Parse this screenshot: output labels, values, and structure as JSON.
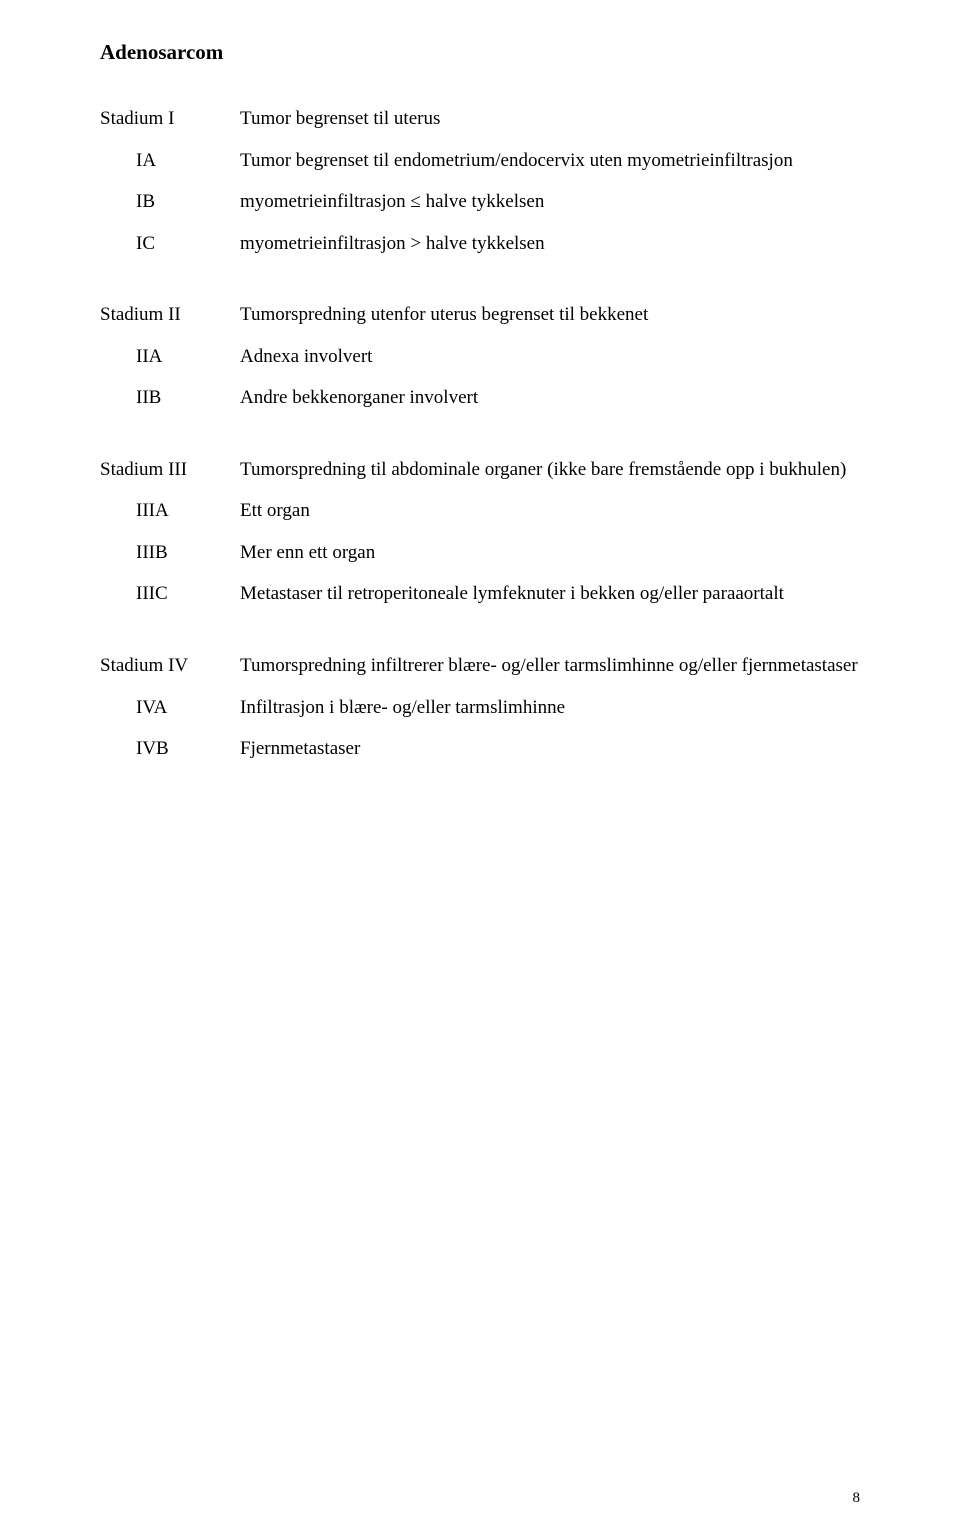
{
  "title": "Adenosarcom",
  "page_number": "8",
  "colors": {
    "text": "#000000",
    "background": "#ffffff"
  },
  "typography": {
    "family": "Times New Roman",
    "heading_size_pt": 16,
    "body_size_pt": 14
  },
  "groups": [
    {
      "rows": [
        {
          "label": "Stadium I",
          "sub": false,
          "text": "Tumor begrenset til uterus"
        },
        {
          "label": "IA",
          "sub": true,
          "text": "Tumor begrenset til endometrium/endocervix uten myometrieinfiltrasjon"
        },
        {
          "label": "IB",
          "sub": true,
          "text": "myometrieinfiltrasjon ≤ halve tykkelsen"
        },
        {
          "label": "IC",
          "sub": true,
          "text": "myometrieinfiltrasjon > halve tykkelsen"
        }
      ]
    },
    {
      "rows": [
        {
          "label": "Stadium II",
          "sub": false,
          "text": "Tumorspredning utenfor uterus begrenset til bekkenet"
        },
        {
          "label": "IIA",
          "sub": true,
          "text": "Adnexa involvert"
        },
        {
          "label": "IIB",
          "sub": true,
          "text": "Andre bekkenorganer involvert"
        }
      ]
    },
    {
      "rows": [
        {
          "label": "Stadium III",
          "sub": false,
          "text": "Tumorspredning til abdominale organer (ikke bare fremstående opp i bukhulen)"
        },
        {
          "label": "IIIA",
          "sub": true,
          "text": "Ett organ"
        },
        {
          "label": "IIIB",
          "sub": true,
          "text": "Mer enn ett organ"
        },
        {
          "label": "IIIC",
          "sub": true,
          "text": "Metastaser til retroperitoneale lymfeknuter i bekken og/eller paraaortalt"
        }
      ]
    },
    {
      "rows": [
        {
          "label": "Stadium IV",
          "sub": false,
          "text": "Tumorspredning infiltrerer blære- og/eller tarmslimhinne og/eller fjernmetastaser"
        },
        {
          "label": "IVA",
          "sub": true,
          "text": "Infiltrasjon i blære- og/eller tarmslimhinne"
        },
        {
          "label": "IVB",
          "sub": true,
          "text": "Fjernmetastaser"
        }
      ]
    }
  ]
}
